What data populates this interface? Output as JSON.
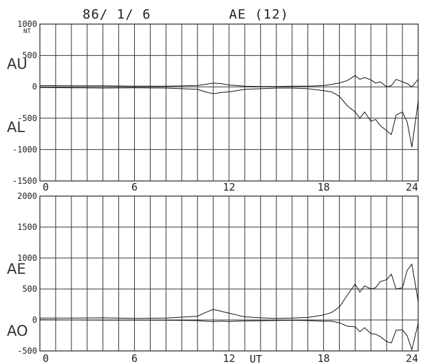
{
  "header": {
    "date": "86/ 1/ 6",
    "title": "AE (12)"
  },
  "chart_data": [
    {
      "type": "line",
      "unit_label": "NT",
      "xlim": [
        0,
        24
      ],
      "ylim": [
        -1500,
        1000
      ],
      "yticks": [
        1000,
        500,
        0,
        -500,
        -1000,
        -1500
      ],
      "ytick_labels": [
        "1000",
        "500",
        "0",
        "-500",
        "-1000",
        "-1500"
      ],
      "xticks": [
        0,
        6,
        12,
        18,
        24
      ],
      "xtick_labels": [
        "0",
        "6",
        "12",
        "18",
        "24"
      ],
      "grid": true,
      "series": [
        {
          "name": "AU",
          "x": [
            0,
            2,
            4,
            6,
            8,
            10,
            10.5,
            11,
            11.5,
            12,
            12.5,
            13,
            14,
            15,
            16,
            17,
            18,
            18.5,
            19,
            19.5,
            20,
            20.3,
            20.6,
            21,
            21.3,
            21.6,
            22,
            22.3,
            22.6,
            23,
            23.3,
            23.6,
            24
          ],
          "y": [
            20,
            15,
            15,
            10,
            10,
            20,
            40,
            60,
            50,
            30,
            20,
            10,
            5,
            5,
            10,
            10,
            20,
            40,
            60,
            100,
            180,
            120,
            150,
            110,
            60,
            80,
            0,
            20,
            120,
            80,
            50,
            0,
            120
          ]
        },
        {
          "name": "AL",
          "x": [
            0,
            2,
            4,
            6,
            8,
            10,
            10.5,
            11,
            11.5,
            12,
            12.5,
            13,
            14,
            15,
            16,
            17,
            18,
            18.5,
            19,
            19.5,
            20,
            20.3,
            20.6,
            21,
            21.3,
            21.6,
            22,
            22.3,
            22.6,
            23,
            23.3,
            23.6,
            24
          ],
          "y": [
            -10,
            -15,
            -20,
            -15,
            -20,
            -40,
            -80,
            -110,
            -90,
            -80,
            -60,
            -40,
            -30,
            -20,
            -20,
            -30,
            -60,
            -80,
            -150,
            -300,
            -400,
            -500,
            -400,
            -550,
            -520,
            -620,
            -700,
            -760,
            -450,
            -400,
            -560,
            -960,
            -230
          ]
        }
      ]
    },
    {
      "type": "line",
      "xlabel": "UT",
      "xlim": [
        0,
        24
      ],
      "ylim": [
        -500,
        2000
      ],
      "yticks": [
        2000,
        1500,
        1000,
        500,
        0,
        -500
      ],
      "ytick_labels": [
        "2000",
        "1500",
        "1000",
        "500",
        "0",
        "-500"
      ],
      "xticks": [
        0,
        6,
        12,
        18,
        24
      ],
      "xtick_labels": [
        "0",
        "6",
        "12",
        "18",
        "24"
      ],
      "grid": true,
      "series": [
        {
          "name": "AE",
          "x": [
            0,
            2,
            4,
            6,
            8,
            10,
            10.5,
            11,
            11.5,
            12,
            12.5,
            13,
            14,
            15,
            16,
            17,
            18,
            18.5,
            19,
            19.5,
            20,
            20.3,
            20.6,
            21,
            21.3,
            21.6,
            22,
            22.3,
            22.6,
            23,
            23.3,
            23.6,
            24
          ],
          "y": [
            30,
            30,
            35,
            25,
            30,
            60,
            120,
            170,
            140,
            110,
            80,
            50,
            35,
            25,
            30,
            40,
            80,
            120,
            210,
            400,
            580,
            450,
            550,
            500,
            520,
            620,
            650,
            740,
            500,
            520,
            800,
            900,
            300
          ]
        },
        {
          "name": "AO",
          "x": [
            0,
            2,
            4,
            6,
            8,
            10,
            10.5,
            11,
            11.5,
            12,
            12.5,
            13,
            14,
            15,
            16,
            17,
            18,
            18.5,
            19,
            19.5,
            20,
            20.3,
            20.6,
            21,
            21.3,
            21.6,
            22,
            22.3,
            22.6,
            23,
            23.3,
            23.6,
            24
          ],
          "y": [
            5,
            0,
            -2,
            -2,
            -5,
            -10,
            -20,
            -25,
            -20,
            -25,
            -20,
            -15,
            -12,
            -8,
            -5,
            -10,
            -20,
            -20,
            -45,
            -100,
            -110,
            -190,
            -125,
            -220,
            -230,
            -270,
            -350,
            -370,
            -165,
            -160,
            -255,
            -480,
            -55
          ]
        }
      ]
    }
  ]
}
